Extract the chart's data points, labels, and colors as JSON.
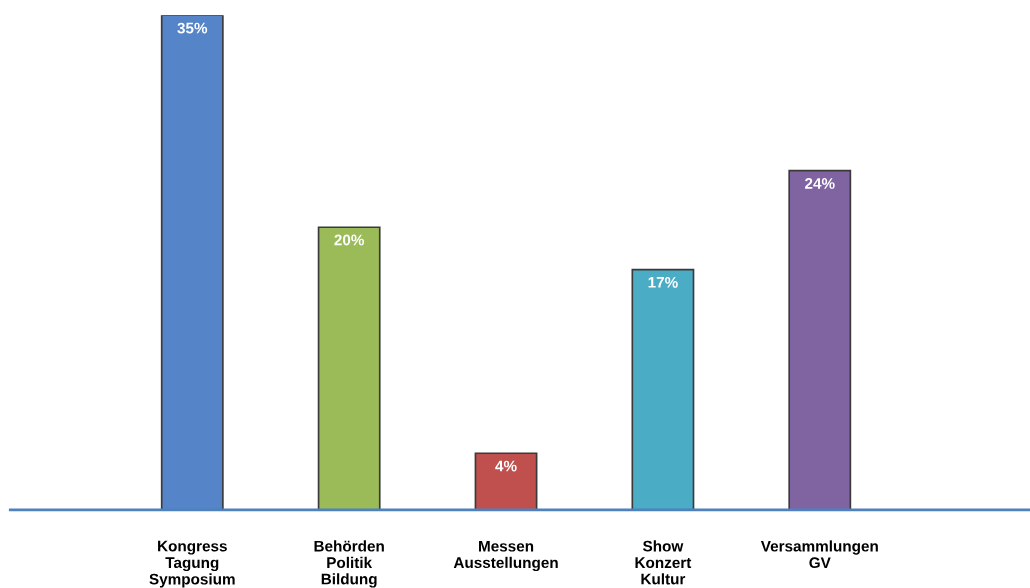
{
  "chart_data": {
    "type": "bar",
    "categories": [
      "Kongress\nTagung\nSymposium",
      "Behörden\nPolitik\nBildung",
      "Messen\nAusstellungen",
      "Show\nKonzert\nKultur",
      "Versammlungen\nGV"
    ],
    "values": [
      35,
      20,
      4,
      17,
      24
    ],
    "colors": [
      "#5585c8",
      "#9bbb59",
      "#c0504d",
      "#4bacc6",
      "#8064a2"
    ],
    "value_labels": [
      "35%",
      "20%",
      "4%",
      "17%",
      "24%"
    ],
    "grid": false,
    "legend": false
  }
}
